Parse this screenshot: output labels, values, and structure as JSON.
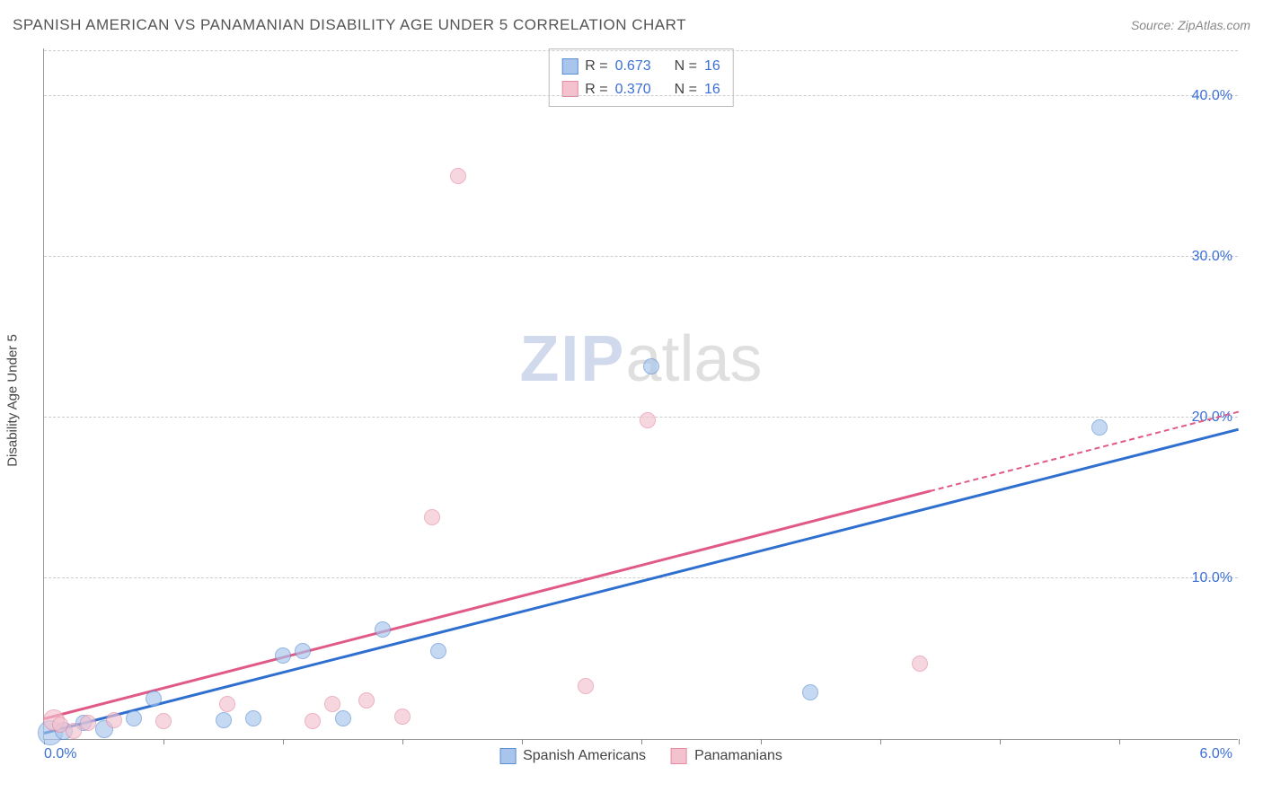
{
  "header": {
    "title": "SPANISH AMERICAN VS PANAMANIAN DISABILITY AGE UNDER 5 CORRELATION CHART",
    "source": "Source: ZipAtlas.com"
  },
  "watermark": {
    "zip": "ZIP",
    "atlas": "atlas"
  },
  "chart": {
    "type": "scatter",
    "ylabel": "Disability Age Under 5",
    "background_color": "#ffffff",
    "grid_color": "#cccccc",
    "axis_color": "#999999",
    "text_color": "#555555",
    "tick_label_color": "#3b6fd6",
    "tick_label_fontsize": 16,
    "title_fontsize": 17,
    "ylabel_fontsize": 15,
    "xlim": [
      0.0,
      6.0
    ],
    "ylim": [
      0.0,
      43.0
    ],
    "x_origin_label": "0.0%",
    "x_max_label": "6.0%",
    "y_ticks": [
      10.0,
      20.0,
      30.0,
      40.0
    ],
    "y_tick_labels": [
      "10.0%",
      "20.0%",
      "30.0%",
      "40.0%"
    ],
    "x_minor_ticks": [
      0.0,
      0.6,
      1.2,
      1.8,
      2.4,
      3.0,
      3.6,
      4.2,
      4.8,
      5.4,
      6.0
    ],
    "series": [
      {
        "name": "Spanish Americans",
        "fill_color": "#a9c5ec",
        "stroke_color": "#5a8fd6",
        "fill_opacity": 0.65,
        "trend_color": "#2f6fd0",
        "marker_radius": 9,
        "r_value": "0.673",
        "n_value": "16",
        "trend": {
          "x1": 0.0,
          "y1": 0.3,
          "x2": 6.0,
          "y2": 19.2,
          "solid_until_x": 6.0
        },
        "points": [
          {
            "x": 0.03,
            "y": 0.4,
            "r": 14
          },
          {
            "x": 0.1,
            "y": 0.5,
            "r": 10
          },
          {
            "x": 0.2,
            "y": 1.0,
            "r": 9
          },
          {
            "x": 0.3,
            "y": 0.6,
            "r": 10
          },
          {
            "x": 0.45,
            "y": 1.3,
            "r": 9
          },
          {
            "x": 0.55,
            "y": 2.5,
            "r": 9
          },
          {
            "x": 0.9,
            "y": 1.2,
            "r": 9
          },
          {
            "x": 1.05,
            "y": 1.3,
            "r": 9
          },
          {
            "x": 1.2,
            "y": 5.2,
            "r": 9
          },
          {
            "x": 1.3,
            "y": 5.5,
            "r": 9
          },
          {
            "x": 1.5,
            "y": 1.3,
            "r": 9
          },
          {
            "x": 1.7,
            "y": 6.8,
            "r": 9
          },
          {
            "x": 1.98,
            "y": 5.5,
            "r": 9
          },
          {
            "x": 3.05,
            "y": 23.2,
            "r": 9
          },
          {
            "x": 3.85,
            "y": 2.9,
            "r": 9
          },
          {
            "x": 5.3,
            "y": 19.4,
            "r": 9
          }
        ]
      },
      {
        "name": "Panamanians",
        "fill_color": "#f4c2cf",
        "stroke_color": "#e48aa3",
        "fill_opacity": 0.65,
        "trend_color": "#e05a85",
        "marker_radius": 9,
        "r_value": "0.370",
        "n_value": "16",
        "trend": {
          "x1": 0.0,
          "y1": 1.2,
          "x2": 6.0,
          "y2": 20.3,
          "solid_until_x": 4.45
        },
        "points": [
          {
            "x": 0.05,
            "y": 1.2,
            "r": 12
          },
          {
            "x": 0.08,
            "y": 0.9,
            "r": 9
          },
          {
            "x": 0.15,
            "y": 0.5,
            "r": 9
          },
          {
            "x": 0.22,
            "y": 1.0,
            "r": 9
          },
          {
            "x": 0.35,
            "y": 1.2,
            "r": 9
          },
          {
            "x": 0.6,
            "y": 1.1,
            "r": 9
          },
          {
            "x": 0.92,
            "y": 2.2,
            "r": 9
          },
          {
            "x": 1.35,
            "y": 1.1,
            "r": 9
          },
          {
            "x": 1.45,
            "y": 2.2,
            "r": 9
          },
          {
            "x": 1.62,
            "y": 2.4,
            "r": 9
          },
          {
            "x": 1.8,
            "y": 1.4,
            "r": 9
          },
          {
            "x": 1.95,
            "y": 13.8,
            "r": 9
          },
          {
            "x": 2.08,
            "y": 35.0,
            "r": 9
          },
          {
            "x": 2.72,
            "y": 3.3,
            "r": 9
          },
          {
            "x": 3.03,
            "y": 19.8,
            "r": 9
          },
          {
            "x": 4.4,
            "y": 4.7,
            "r": 9
          }
        ]
      }
    ],
    "legend": {
      "stats_labels": {
        "r": "R =",
        "n": "N ="
      }
    }
  }
}
